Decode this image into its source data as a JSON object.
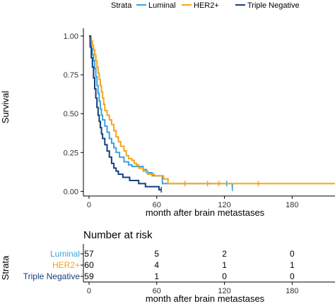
{
  "chart_data": [
    {
      "type": "line",
      "subtype": "kaplan-meier",
      "title": "",
      "xlabel": "month after brain metastases",
      "ylabel": "Survival",
      "xlim": [
        -5,
        218
      ],
      "ylim": [
        -0.03,
        1.05
      ],
      "xticks": [
        0,
        60,
        120,
        180
      ],
      "yticks": [
        0.0,
        0.25,
        0.5,
        0.75,
        1.0
      ],
      "ytick_labels": [
        "0.00",
        "0.25",
        "0.50",
        "0.75",
        "1.00"
      ],
      "grid": false,
      "legend": {
        "title": "Strata",
        "position": "top",
        "entries": [
          "Luminal",
          "HER2+",
          "Triple Negative"
        ]
      },
      "series": [
        {
          "name": "Luminal",
          "color": "#3ba3df",
          "points": [
            [
              0,
              1.0
            ],
            [
              1,
              0.96
            ],
            [
              2,
              0.92
            ],
            [
              3,
              0.88
            ],
            [
              4,
              0.84
            ],
            [
              5,
              0.79
            ],
            [
              6,
              0.74
            ],
            [
              7,
              0.68
            ],
            [
              8,
              0.63
            ],
            [
              9,
              0.58
            ],
            [
              10,
              0.53
            ],
            [
              11,
              0.49
            ],
            [
              12,
              0.46
            ],
            [
              14,
              0.42
            ],
            [
              16,
              0.38
            ],
            [
              18,
              0.34
            ],
            [
              20,
              0.31
            ],
            [
              22,
              0.28
            ],
            [
              24,
              0.25
            ],
            [
              27,
              0.22
            ],
            [
              31,
              0.19
            ],
            [
              35,
              0.17
            ],
            [
              38,
              0.16
            ],
            [
              47,
              0.16
            ],
            [
              48,
              0.14
            ],
            [
              51,
              0.12
            ],
            [
              55,
              0.12
            ],
            [
              56,
              0.1
            ],
            [
              64,
              0.1
            ],
            [
              65,
              0.05
            ],
            [
              127,
              0.02
            ]
          ],
          "censored_x": [
            122,
            127
          ]
        },
        {
          "name": "HER2+",
          "color": "#f5a31b",
          "points": [
            [
              0,
              1.0
            ],
            [
              2,
              0.97
            ],
            [
              3,
              0.94
            ],
            [
              4,
              0.91
            ],
            [
              5,
              0.88
            ],
            [
              6,
              0.84
            ],
            [
              7,
              0.8
            ],
            [
              8,
              0.76
            ],
            [
              9,
              0.72
            ],
            [
              10,
              0.68
            ],
            [
              11,
              0.64
            ],
            [
              12,
              0.6
            ],
            [
              13,
              0.56
            ],
            [
              14,
              0.52
            ],
            [
              16,
              0.49
            ],
            [
              18,
              0.46
            ],
            [
              20,
              0.43
            ],
            [
              22,
              0.39
            ],
            [
              24,
              0.35
            ],
            [
              26,
              0.32
            ],
            [
              28,
              0.29
            ],
            [
              31,
              0.26
            ],
            [
              33,
              0.23
            ],
            [
              35,
              0.21
            ],
            [
              38,
              0.2
            ],
            [
              40,
              0.18
            ],
            [
              42,
              0.17
            ],
            [
              44,
              0.15
            ],
            [
              48,
              0.13
            ],
            [
              52,
              0.11
            ],
            [
              58,
              0.1
            ],
            [
              66,
              0.08
            ],
            [
              70,
              0.05
            ],
            [
              218,
              0.05
            ]
          ],
          "censored_x": [
            85,
            105,
            115,
            150
          ]
        },
        {
          "name": "Triple Negative",
          "color": "#153e7e",
          "points": [
            [
              0,
              1.0
            ],
            [
              1,
              0.93
            ],
            [
              2,
              0.86
            ],
            [
              3,
              0.8
            ],
            [
              4,
              0.73
            ],
            [
              5,
              0.66
            ],
            [
              6,
              0.6
            ],
            [
              7,
              0.54
            ],
            [
              8,
              0.49
            ],
            [
              9,
              0.45
            ],
            [
              10,
              0.41
            ],
            [
              11,
              0.37
            ],
            [
              12,
              0.34
            ],
            [
              14,
              0.3
            ],
            [
              16,
              0.26
            ],
            [
              18,
              0.22
            ],
            [
              20,
              0.18
            ],
            [
              22,
              0.15
            ],
            [
              24,
              0.13
            ],
            [
              26,
              0.11
            ],
            [
              30,
              0.09
            ],
            [
              36,
              0.07
            ],
            [
              44,
              0.05
            ],
            [
              50,
              0.03
            ],
            [
              62,
              0.01
            ],
            [
              64,
              0.01
            ]
          ],
          "censored_x": [
            64
          ]
        }
      ]
    },
    {
      "type": "table",
      "title": "Number at risk",
      "ylabel": "Strata",
      "xlabel": "month after brain metastases",
      "xticks": [
        0,
        60,
        120,
        180
      ],
      "rows": [
        {
          "label": "Luminal",
          "color": "#3ba3df",
          "values": [
            "57",
            "5",
            "2",
            "0"
          ]
        },
        {
          "label": "HER2+",
          "color": "#f5a31b",
          "values": [
            "60",
            "4",
            "1",
            "1"
          ]
        },
        {
          "label": "Triple Negative",
          "color": "#153e7e",
          "values": [
            "59",
            "1",
            "0",
            "0"
          ]
        }
      ]
    }
  ]
}
